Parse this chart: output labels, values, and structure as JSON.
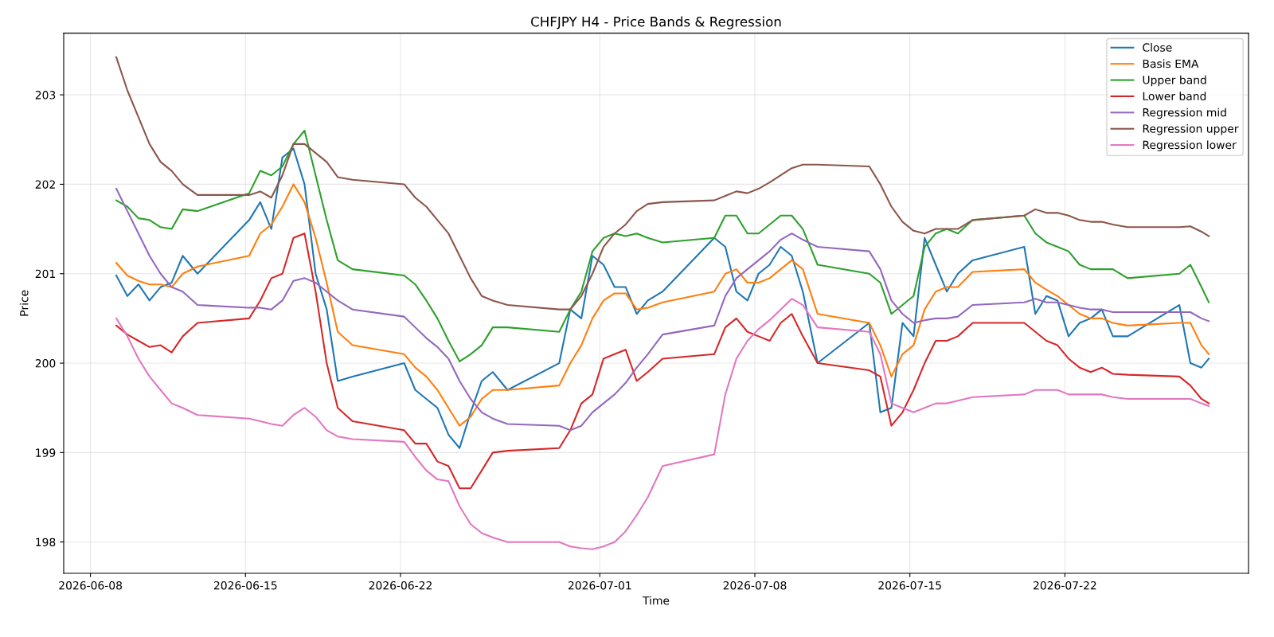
{
  "chart_data": {
    "type": "line",
    "title": "CHFJPY H4 - Price Bands & Regression",
    "xlabel": "Time",
    "ylabel": "Price",
    "x": [
      "2026-06-09T04:00",
      "2026-06-09T16:00",
      "2026-06-10T04:00",
      "2026-06-10T16:00",
      "2026-06-11T04:00",
      "2026-06-11T16:00",
      "2026-06-12T04:00",
      "2026-06-12T20:00",
      "2026-06-15T04:00",
      "2026-06-15T16:00",
      "2026-06-16T04:00",
      "2026-06-16T16:00",
      "2026-06-17T04:00",
      "2026-06-17T16:00",
      "2026-06-18T04:00",
      "2026-06-18T16:00",
      "2026-06-19T04:00",
      "2026-06-19T20:00",
      "2026-06-22T04:00",
      "2026-06-22T16:00",
      "2026-06-23T04:00",
      "2026-06-23T16:00",
      "2026-06-24T04:00",
      "2026-06-24T16:00",
      "2026-06-25T04:00",
      "2026-06-25T16:00",
      "2026-06-26T04:00",
      "2026-06-26T20:00",
      "2026-06-29T04:00",
      "2026-06-29T16:00",
      "2026-06-30T04:00",
      "2026-06-30T16:00",
      "2026-07-01T04:00",
      "2026-07-01T16:00",
      "2026-07-02T04:00",
      "2026-07-02T16:00",
      "2026-07-03T04:00",
      "2026-07-03T20:00",
      "2026-07-06T04:00",
      "2026-07-06T16:00",
      "2026-07-07T04:00",
      "2026-07-07T16:00",
      "2026-07-08T04:00",
      "2026-07-08T16:00",
      "2026-07-09T04:00",
      "2026-07-09T16:00",
      "2026-07-10T04:00",
      "2026-07-10T20:00",
      "2026-07-13T04:00",
      "2026-07-13T16:00",
      "2026-07-14T04:00",
      "2026-07-14T16:00",
      "2026-07-15T04:00",
      "2026-07-15T16:00",
      "2026-07-16T04:00",
      "2026-07-16T16:00",
      "2026-07-17T04:00",
      "2026-07-17T20:00",
      "2026-07-20T04:00",
      "2026-07-20T16:00",
      "2026-07-21T04:00",
      "2026-07-21T16:00",
      "2026-07-22T04:00",
      "2026-07-22T16:00",
      "2026-07-23T04:00",
      "2026-07-23T16:00",
      "2026-07-24T04:00",
      "2026-07-24T20:00",
      "2026-07-27T04:00",
      "2026-07-27T16:00",
      "2026-07-28T04:00",
      "2026-07-28T12:00"
    ],
    "series": [
      {
        "name": "Close",
        "color": "#1f77b4",
        "values": [
          200.98,
          200.75,
          200.88,
          200.7,
          200.85,
          200.9,
          201.2,
          201.0,
          201.6,
          201.8,
          201.5,
          202.3,
          202.4,
          202.0,
          201.0,
          200.6,
          199.8,
          199.85,
          200.0,
          199.7,
          199.6,
          199.5,
          199.2,
          199.05,
          199.45,
          199.8,
          199.9,
          199.7,
          200.0,
          200.6,
          200.5,
          201.2,
          201.1,
          200.85,
          200.85,
          200.55,
          200.7,
          200.8,
          201.4,
          201.3,
          200.8,
          200.7,
          201.0,
          201.1,
          201.3,
          201.2,
          200.8,
          200.0,
          200.45,
          199.45,
          199.5,
          200.45,
          200.3,
          201.4,
          201.1,
          200.8,
          201.0,
          201.15,
          201.3,
          200.55,
          200.75,
          200.7,
          200.3,
          200.45,
          200.5,
          200.6,
          200.3,
          200.3,
          200.65,
          200.0,
          199.95,
          200.05
        ]
      },
      {
        "name": "Basis EMA",
        "color": "#ff7f0e",
        "values": [
          201.12,
          200.98,
          200.92,
          200.88,
          200.88,
          200.85,
          201.0,
          201.08,
          201.2,
          201.45,
          201.55,
          201.75,
          202.0,
          201.8,
          201.4,
          200.9,
          200.35,
          200.2,
          200.1,
          199.95,
          199.85,
          199.7,
          199.5,
          199.3,
          199.4,
          199.6,
          199.7,
          199.7,
          199.75,
          200.0,
          200.2,
          200.5,
          200.7,
          200.78,
          200.78,
          200.6,
          200.62,
          200.68,
          200.8,
          201.0,
          201.05,
          200.9,
          200.9,
          200.95,
          201.05,
          201.15,
          201.05,
          200.55,
          200.45,
          200.2,
          199.85,
          200.1,
          200.2,
          200.6,
          200.8,
          200.85,
          200.85,
          201.02,
          201.05,
          200.9,
          200.82,
          200.75,
          200.65,
          200.55,
          200.5,
          200.5,
          200.45,
          200.42,
          200.45,
          200.45,
          200.2,
          200.1
        ]
      },
      {
        "name": "Upper band",
        "color": "#2ca02c",
        "values": [
          201.82,
          201.75,
          201.62,
          201.6,
          201.52,
          201.5,
          201.72,
          201.7,
          201.9,
          202.15,
          202.1,
          202.2,
          202.45,
          202.6,
          202.1,
          201.6,
          201.15,
          201.05,
          200.98,
          200.88,
          200.7,
          200.5,
          200.25,
          200.02,
          200.1,
          200.2,
          200.4,
          200.4,
          200.35,
          200.6,
          200.8,
          201.25,
          201.4,
          201.45,
          201.42,
          201.45,
          201.4,
          201.35,
          201.4,
          201.65,
          201.65,
          201.45,
          201.45,
          201.55,
          201.65,
          201.65,
          201.5,
          201.1,
          201.0,
          200.9,
          200.55,
          200.65,
          200.75,
          201.3,
          201.45,
          201.5,
          201.45,
          201.6,
          201.65,
          201.45,
          201.35,
          201.3,
          201.25,
          201.1,
          201.05,
          201.05,
          201.05,
          200.95,
          201.0,
          201.1,
          200.85,
          200.68
        ]
      },
      {
        "name": "Lower band",
        "color": "#d62728",
        "values": [
          200.42,
          200.32,
          200.25,
          200.18,
          200.2,
          200.12,
          200.3,
          200.45,
          200.5,
          200.7,
          200.95,
          201.0,
          201.4,
          201.45,
          200.8,
          200.0,
          199.5,
          199.35,
          199.25,
          199.1,
          199.1,
          198.9,
          198.85,
          198.6,
          198.6,
          198.8,
          199.0,
          199.02,
          199.05,
          199.25,
          199.55,
          199.65,
          200.05,
          200.1,
          200.15,
          199.8,
          199.9,
          200.05,
          200.1,
          200.4,
          200.5,
          200.35,
          200.3,
          200.25,
          200.45,
          200.55,
          200.3,
          200.0,
          199.92,
          199.85,
          199.3,
          199.45,
          199.7,
          200.0,
          200.25,
          200.25,
          200.3,
          200.45,
          200.45,
          200.35,
          200.25,
          200.2,
          200.05,
          199.95,
          199.9,
          199.95,
          199.88,
          199.87,
          199.85,
          199.75,
          199.6,
          199.55
        ]
      },
      {
        "name": "Regression mid",
        "color": "#9467bd",
        "values": [
          201.95,
          201.7,
          201.45,
          201.2,
          201.0,
          200.85,
          200.8,
          200.65,
          200.62,
          200.62,
          200.6,
          200.7,
          200.92,
          200.95,
          200.9,
          200.8,
          200.7,
          200.6,
          200.52,
          200.4,
          200.28,
          200.18,
          200.05,
          199.8,
          199.6,
          199.45,
          199.38,
          199.32,
          199.3,
          199.25,
          199.3,
          199.45,
          199.55,
          199.65,
          199.78,
          199.95,
          200.1,
          200.32,
          200.42,
          200.75,
          200.95,
          201.05,
          201.15,
          201.25,
          201.38,
          201.45,
          201.38,
          201.3,
          201.25,
          201.05,
          200.7,
          200.55,
          200.45,
          200.48,
          200.5,
          200.5,
          200.52,
          200.65,
          200.68,
          200.72,
          200.68,
          200.68,
          200.65,
          200.62,
          200.6,
          200.6,
          200.57,
          200.57,
          200.57,
          200.57,
          200.5,
          200.47
        ]
      },
      {
        "name": "Regression upper",
        "color": "#8c564b",
        "values": [
          203.42,
          203.05,
          202.75,
          202.45,
          202.25,
          202.15,
          202.0,
          201.88,
          201.88,
          201.92,
          201.85,
          202.1,
          202.45,
          202.45,
          202.35,
          202.25,
          202.08,
          202.05,
          202.0,
          201.85,
          201.75,
          201.6,
          201.45,
          201.2,
          200.95,
          200.75,
          200.7,
          200.65,
          200.6,
          200.6,
          200.75,
          201.0,
          201.3,
          201.45,
          201.55,
          201.7,
          201.78,
          201.8,
          201.82,
          201.87,
          201.92,
          201.9,
          201.95,
          202.02,
          202.1,
          202.18,
          202.22,
          202.22,
          202.2,
          202.0,
          201.75,
          201.58,
          201.48,
          201.45,
          201.5,
          201.5,
          201.5,
          201.6,
          201.65,
          201.72,
          201.68,
          201.68,
          201.65,
          201.6,
          201.58,
          201.58,
          201.55,
          201.52,
          201.52,
          201.53,
          201.47,
          201.42
        ]
      },
      {
        "name": "Regression lower",
        "color": "#e377c2",
        "values": [
          200.5,
          200.3,
          200.05,
          199.85,
          199.7,
          199.55,
          199.5,
          199.42,
          199.38,
          199.35,
          199.32,
          199.3,
          199.42,
          199.5,
          199.4,
          199.25,
          199.18,
          199.15,
          199.12,
          198.95,
          198.8,
          198.7,
          198.68,
          198.4,
          198.2,
          198.1,
          198.05,
          198.0,
          198.0,
          197.95,
          197.93,
          197.92,
          197.95,
          198.0,
          198.12,
          198.3,
          198.5,
          198.85,
          198.98,
          199.65,
          200.05,
          200.25,
          200.38,
          200.48,
          200.6,
          200.72,
          200.65,
          200.4,
          200.35,
          200.1,
          199.55,
          199.5,
          199.45,
          199.5,
          199.55,
          199.55,
          199.58,
          199.62,
          199.65,
          199.7,
          199.7,
          199.7,
          199.65,
          199.65,
          199.65,
          199.65,
          199.62,
          199.6,
          199.6,
          199.6,
          199.55,
          199.52
        ]
      }
    ],
    "xlim": [
      "2026-06-06T19:00",
      "2026-07-30T07:00"
    ],
    "xticks": [
      "2026-06-08",
      "2026-06-15",
      "2026-06-22",
      "2026-07-01",
      "2026-07-08",
      "2026-07-15",
      "2026-07-22"
    ],
    "ylim": [
      197.65,
      203.69
    ],
    "yticks": [
      198,
      199,
      200,
      201,
      202,
      203
    ],
    "grid": true,
    "legend": "top right",
    "line_style": "solid",
    "marker": "none"
  }
}
